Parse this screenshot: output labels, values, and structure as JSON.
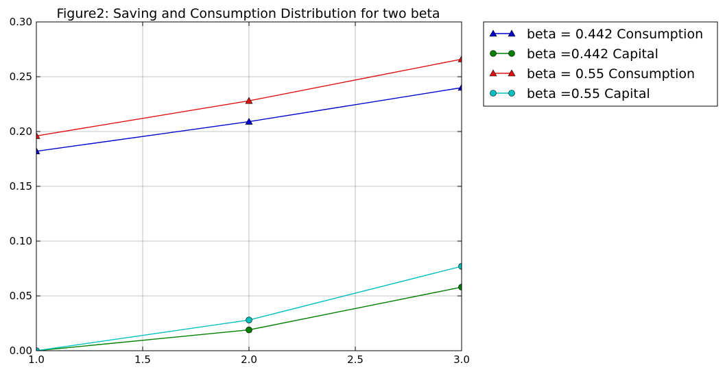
{
  "chart_data": {
    "type": "line",
    "title": "Figure2: Saving and Consumption Distribution for two beta",
    "xlabel": "",
    "ylabel": "",
    "xlim": [
      1.0,
      3.0
    ],
    "ylim": [
      0.0,
      0.3
    ],
    "x_ticks": [
      "1.0",
      "1.5",
      "2.0",
      "2.5",
      "3.0"
    ],
    "y_ticks": [
      "0.00",
      "0.05",
      "0.10",
      "0.15",
      "0.20",
      "0.25",
      "0.30"
    ],
    "grid": true,
    "legend_position": "outside-top-right",
    "x": [
      1,
      2,
      3
    ],
    "series": [
      {
        "name": "beta = 0.442 Consumption",
        "values": [
          0.182,
          0.209,
          0.24
        ],
        "color": "#0000cc",
        "marker": "triangle"
      },
      {
        "name": "beta =0.442 Capital",
        "values": [
          0.0,
          0.019,
          0.058
        ],
        "color": "#007f00",
        "marker": "circle"
      },
      {
        "name": "beta = 0.55 Consumption",
        "values": [
          0.196,
          0.228,
          0.266
        ],
        "color": "#e01010",
        "marker": "triangle"
      },
      {
        "name": "beta =0.55 Capital",
        "values": [
          0.0,
          0.028,
          0.077
        ],
        "color": "#00bfbf",
        "marker": "circle"
      }
    ]
  }
}
